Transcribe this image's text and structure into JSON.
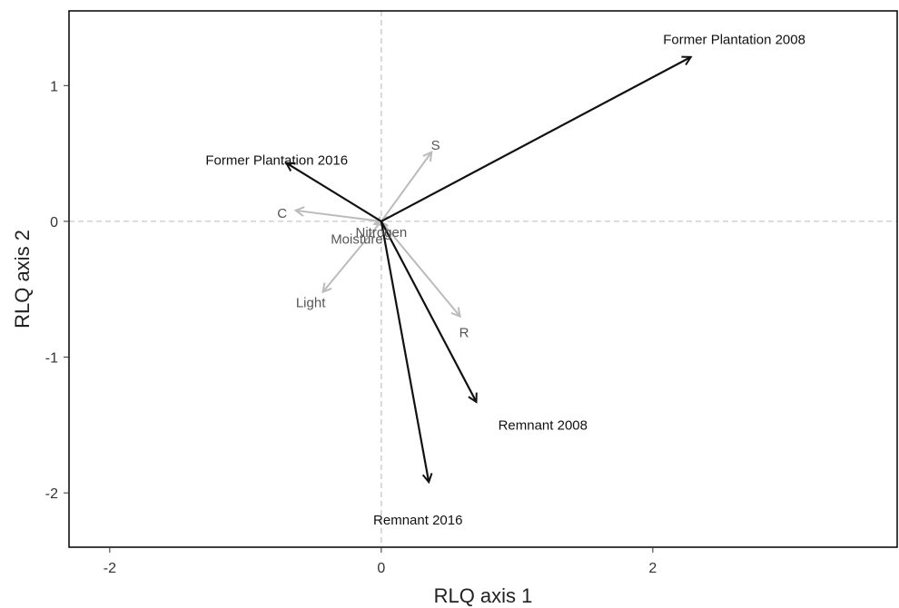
{
  "chart_data": {
    "type": "scatter",
    "title": "",
    "xlabel": "RLQ axis 1",
    "ylabel": "RLQ axis 2",
    "xlim": [
      -2.3,
      3.8
    ],
    "ylim": [
      -2.4,
      1.55
    ],
    "xticks": [
      -2,
      0,
      2
    ],
    "yticks": [
      -2,
      -1,
      0,
      1
    ],
    "xtick_labels": [
      "-2",
      "0",
      "2"
    ],
    "ytick_labels": [
      "-2",
      "-1",
      "0",
      "1"
    ],
    "reference_lines": {
      "x": 0,
      "y": 0,
      "style": "dashed"
    },
    "grid": false,
    "series": [
      {
        "name": "",
        "color": "#111111",
        "vectors": [
          {
            "label": "Former Plantation 2008",
            "x": 2.28,
            "y": 1.21,
            "label_x": 2.6,
            "label_y": 1.34
          },
          {
            "label": "Former Plantation 2016",
            "x": -0.7,
            "y": 0.43,
            "label_x": -0.77,
            "label_y": 0.45
          },
          {
            "label": "Remnant 2008",
            "x": 0.7,
            "y": -1.33,
            "label_x": 1.19,
            "label_y": -1.5
          },
          {
            "label": "Remnant 2016",
            "x": 0.35,
            "y": -1.92,
            "label_x": 0.27,
            "label_y": -2.2
          }
        ]
      },
      {
        "name": "",
        "color": "#bbbbbb",
        "vectors": [
          {
            "label": "S",
            "x": 0.37,
            "y": 0.51,
            "label_x": 0.4,
            "label_y": 0.56
          },
          {
            "label": "C",
            "x": -0.63,
            "y": 0.08,
            "label_x": -0.73,
            "label_y": 0.06
          },
          {
            "label": "Light",
            "x": -0.43,
            "y": -0.52,
            "label_x": -0.52,
            "label_y": -0.6
          },
          {
            "label": "R",
            "x": 0.58,
            "y": -0.7,
            "label_x": 0.61,
            "label_y": -0.82
          },
          {
            "label": "Nitrogen",
            "x": -0.01,
            "y": 0.0,
            "label_x": 0.0,
            "label_y": -0.08
          },
          {
            "label": "Moisture",
            "x": -0.05,
            "y": -0.02,
            "label_x": -0.18,
            "label_y": -0.13
          }
        ]
      }
    ]
  }
}
